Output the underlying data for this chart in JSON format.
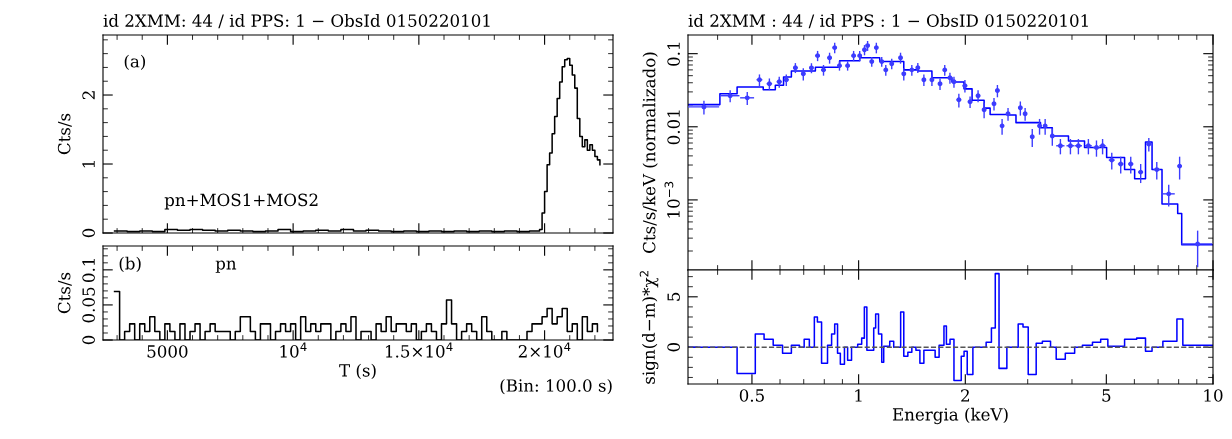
{
  "chart_data": [
    {
      "type": "step",
      "title": "id 2XMM: 44 / id PPS: 1 − ObsId 0150220101",
      "ylabel": "Cts/s",
      "annotations": [
        "(a)",
        "pn+MOS1+MOS2"
      ],
      "xlim": [
        2440,
        22720
      ],
      "xticks": [
        5000,
        10000,
        15000,
        20000
      ],
      "ylim": [
        0,
        2.87
      ],
      "yticks": [
        0,
        1,
        2
      ],
      "tick_labels": "y",
      "series": [
        {
          "color": "#000000",
          "x": [
            2900,
            3400,
            3900,
            4400,
            4900,
            5400,
            5900,
            6400,
            6900,
            7400,
            7900,
            8400,
            8900,
            9400,
            9900,
            10400,
            10900,
            11400,
            11900,
            12400,
            12900,
            13400,
            13900,
            14400,
            14900,
            15400,
            15900,
            16400,
            16900,
            17400,
            17900,
            18400,
            18900,
            19400,
            19700,
            19800,
            19900,
            20000,
            20100,
            20200,
            20300,
            20400,
            20500,
            20600,
            20700,
            20800,
            20900,
            21000,
            21100,
            21200,
            21300,
            21400,
            21500,
            21600,
            21700,
            21800,
            21900,
            22000,
            22100,
            22200
          ],
          "values": [
            0.03,
            0.02,
            0.03,
            0.02,
            0.05,
            0.04,
            0.05,
            0.04,
            0.03,
            0.04,
            0.03,
            0.02,
            0.03,
            0.05,
            0.02,
            0.03,
            0.04,
            0.03,
            0.05,
            0.03,
            0.04,
            0.03,
            0.02,
            0.03,
            0.02,
            0.03,
            0.02,
            0.03,
            0.02,
            0.03,
            0.02,
            0.03,
            0.02,
            0.03,
            0.03,
            0.05,
            0.29,
            0.6,
            0.99,
            1.16,
            1.44,
            1.69,
            1.95,
            2.19,
            2.41,
            2.51,
            2.53,
            2.43,
            2.29,
            2.1,
            1.66,
            1.4,
            1.25,
            1.35,
            1.2,
            1.28,
            1.2,
            1.11,
            1.06,
            0.99
          ]
        }
      ]
    },
    {
      "type": "step",
      "xlabel": "T (s)",
      "ylabel": "Cts/s",
      "annotations": [
        "(b)",
        "pn",
        "(Bin: 100.0 s)"
      ],
      "xlim": [
        2440,
        22720
      ],
      "xticks": [
        5000,
        {
          "value": 10000,
          "label": "10$^{4}$"
        },
        {
          "value": 15000,
          "label": "1.5×10$^{4}$"
        },
        {
          "value": 20000,
          "label": "2×10$^{4}$"
        }
      ],
      "ylim": [
        0,
        0.134
      ],
      "yticks": [
        0,
        0.05,
        0.1
      ],
      "series": [
        {
          "color": "#000000",
          "x": [
            2900,
            3100,
            3300,
            3500,
            3700,
            3900,
            4100,
            4300,
            4500,
            4700,
            4900,
            5100,
            5300,
            5500,
            5700,
            5900,
            6100,
            6300,
            6500,
            6700,
            6900,
            7100,
            7300,
            7500,
            7700,
            7900,
            8100,
            8300,
            8500,
            8700,
            8900,
            9100,
            9300,
            9500,
            9700,
            9900,
            10100,
            10300,
            10500,
            10700,
            10900,
            11100,
            11300,
            11500,
            11700,
            11900,
            12100,
            12300,
            12500,
            12700,
            12900,
            13100,
            13300,
            13500,
            13700,
            13900,
            14100,
            14300,
            14500,
            14700,
            14900,
            15100,
            15300,
            15500,
            15700,
            15900,
            16100,
            16300,
            16500,
            16700,
            16900,
            17100,
            17300,
            17500,
            17700,
            17900,
            18100,
            18300,
            18500,
            18700,
            18900,
            19100,
            19300,
            19500,
            19700,
            19900,
            20100,
            20300,
            20500,
            20700,
            20900,
            21100,
            21300,
            21500,
            21700,
            21900,
            22100
          ],
          "values": [
            0.069,
            0,
            0.012,
            0.023,
            0,
            0.023,
            0.012,
            0.033,
            0.012,
            0,
            0.023,
            0.012,
            0,
            0.023,
            0,
            0.012,
            0.023,
            0,
            0.012,
            0.023,
            0.012,
            0.012,
            0.012,
            0,
            0.012,
            0.033,
            0.033,
            0.012,
            0,
            0.023,
            0.023,
            0,
            0.012,
            0.023,
            0.012,
            0.023,
            0,
            0.033,
            0.012,
            0.023,
            0.012,
            0.023,
            0.023,
            0,
            0.012,
            0.023,
            0.012,
            0.033,
            0,
            0.012,
            0.012,
            0,
            0.023,
            0.012,
            0.033,
            0.012,
            0.023,
            0.023,
            0.012,
            0.023,
            0,
            0.012,
            0.023,
            0.012,
            0,
            0.023,
            0.057,
            0.023,
            0,
            0.012,
            0.023,
            0.012,
            0,
            0.033,
            0.012,
            0,
            0,
            0.012,
            0,
            0,
            0,
            0,
            0.012,
            0.023,
            0.023,
            0.033,
            0.045,
            0.023,
            0.033,
            0.045,
            0.012,
            0.023,
            0,
            0.033,
            0.012,
            0.023,
            0.012
          ]
        }
      ]
    },
    {
      "type": "scatter",
      "title": "id 2XMM : 44 / id PPS : 1 − ObsID 0150220101",
      "ylabel": "Cts/s/keV (normalizado)",
      "log": "xy",
      "xlim": [
        0.33,
        10
      ],
      "xticks": [
        0.5,
        1,
        2,
        5,
        10
      ],
      "ylim": [
        0.00011,
        0.18
      ],
      "yticks": [
        {
          "value": 0.001,
          "label": "10$^{−3}$"
        },
        0.01,
        0.1
      ],
      "tick_labels": "y",
      "series": [
        {
          "type": "scatter",
          "color": "#3c3cff",
          "marker": "circle",
          "x": [
            0.366,
            0.434,
            0.485,
            0.525,
            0.56,
            0.597,
            0.625,
            0.663,
            0.698,
            0.736,
            0.766,
            0.796,
            0.828,
            0.856,
            0.883,
            0.931,
            0.968,
            1.007,
            1.039,
            1.06,
            1.089,
            1.122,
            1.162,
            1.193,
            1.24,
            1.313,
            1.341,
            1.413,
            1.469,
            1.528,
            1.61,
            1.697,
            1.75,
            1.81,
            1.858,
            1.918,
            1.995,
            2.063,
            2.173,
            2.26,
            2.41,
            2.464,
            2.54,
            2.64,
            2.86,
            2.95,
            3.09,
            3.24,
            3.36,
            3.52,
            3.71,
            3.96,
            4.17,
            4.45,
            4.69,
            4.88,
            5.18,
            5.49,
            5.86,
            6.25,
            6.59,
            6.94,
            7.5,
            8.05,
            9.05
          ],
          "values": [
            0.0187,
            0.0266,
            0.0249,
            0.044,
            0.0388,
            0.0413,
            0.044,
            0.0643,
            0.053,
            0.064,
            0.094,
            0.06,
            0.088,
            0.121,
            0.0686,
            0.0686,
            0.094,
            0.094,
            0.113,
            0.129,
            0.078,
            0.121,
            0.078,
            0.06,
            0.073,
            0.088,
            0.053,
            0.06,
            0.0643,
            0.044,
            0.044,
            0.0388,
            0.06,
            0.0469,
            0.0413,
            0.0234,
            0.0365,
            0.022,
            0.0266,
            0.0171,
            0.0207,
            0.0313,
            0.0103,
            0.0151,
            0.0182,
            0.0151,
            0.0073,
            0.0103,
            0.0103,
            0.0075,
            0.0055,
            0.0055,
            0.0055,
            0.0055,
            0.0052,
            0.0055,
            0.0035,
            0.0031,
            0.0031,
            0.0024,
            0.0058,
            0.0026,
            0.00121,
            0.0029,
            0.00025
          ],
          "errors": [
            0.004,
            0.005,
            0.005,
            0.008,
            0.007,
            0.007,
            0.008,
            0.01,
            0.01,
            0.01,
            0.015,
            0.01,
            0.015,
            0.02,
            0.01,
            0.01,
            0.015,
            0.015,
            0.018,
            0.02,
            0.012,
            0.02,
            0.012,
            0.01,
            0.012,
            0.015,
            0.01,
            0.01,
            0.01,
            0.008,
            0.008,
            0.007,
            0.01,
            0.008,
            0.007,
            0.005,
            0.007,
            0.004,
            0.005,
            0.004,
            0.004,
            0.006,
            0.0025,
            0.003,
            0.004,
            0.003,
            0.002,
            0.0025,
            0.0025,
            0.002,
            0.0013,
            0.0013,
            0.0013,
            0.0013,
            0.0013,
            0.0013,
            0.0009,
            0.0008,
            0.0008,
            0.0007,
            0.0012,
            0.0007,
            0.0004,
            0.001,
            0.00013
          ],
          "xerrors": [
            0.038,
            0.027,
            0.022,
            0.01,
            0.01,
            0.01,
            0.01,
            0.01,
            0.01,
            0.01,
            0.012,
            0.012,
            0.012,
            0.012,
            0.012,
            0.012,
            0.012,
            0.012,
            0.012,
            0.012,
            0.012,
            0.012,
            0.012,
            0.012,
            0.012,
            0.012,
            0.012,
            0.012,
            0.012,
            0.012,
            0.012,
            0.012,
            0.012,
            0.012,
            0.012,
            0.03,
            0.03,
            0.03,
            0.03,
            0.03,
            0.03,
            0.03,
            0.03,
            0.03,
            0.03,
            0.03,
            0.03,
            0.03,
            0.03,
            0.03,
            0.1,
            0.1,
            0.1,
            0.1,
            0.1,
            0.1,
            0.1,
            0.1,
            0.1,
            0.1,
            0.1,
            0.15,
            0.3,
            0.1,
            0.9
          ]
        },
        {
          "type": "step",
          "color": "#0000ff",
          "x": [
            0.33,
            0.406,
            0.454,
            0.538,
            0.582,
            0.614,
            0.646,
            0.755,
            0.884,
            1.007,
            1.147,
            1.341,
            1.469,
            1.61,
            1.834,
            1.983,
            2.09,
            2.26,
            2.35,
            2.64,
            2.78,
            3.26,
            3.52,
            3.91,
            4.34,
            5.01,
            5.63,
            6.01,
            6.45,
            6.73,
            7.18,
            7.95,
            8.16,
            10.0
          ],
          "values": [
            0.0201,
            0.0283,
            0.035,
            0.032,
            0.037,
            0.048,
            0.058,
            0.065,
            0.08,
            0.088,
            0.078,
            0.06,
            0.058,
            0.047,
            0.041,
            0.033,
            0.023,
            0.018,
            0.0147,
            0.0145,
            0.0114,
            0.0097,
            0.0075,
            0.0064,
            0.0052,
            0.0038,
            0.0026,
            0.00195,
            0.0062,
            0.0026,
            0.00088,
            0.00065,
            0.000243,
            0.000243
          ]
        }
      ]
    },
    {
      "type": "step",
      "xlabel": "Energia (keV)",
      "ylabel": "sign(d−m)*χ$^{2}$",
      "log": "x",
      "xlim": [
        0.33,
        10
      ],
      "xticks": [
        0.5,
        1,
        2,
        5,
        10
      ],
      "ylim": [
        -3.65,
        7.66
      ],
      "yticks": [
        0,
        5
      ],
      "ref_lines": [
        {
          "axis": "y",
          "value": 0,
          "color": "#555555",
          "line_style": "dashed"
        }
      ],
      "series": [
        {
          "color": "#0000ff",
          "x": [
            0.33,
            0.454,
            0.511,
            0.541,
            0.574,
            0.61,
            0.646,
            0.681,
            0.702,
            0.726,
            0.75,
            0.765,
            0.786,
            0.817,
            0.839,
            0.856,
            0.872,
            0.888,
            0.912,
            0.931,
            0.955,
            0.994,
            1.02,
            1.038,
            1.055,
            1.103,
            1.117,
            1.138,
            1.162,
            1.177,
            1.224,
            1.256,
            1.314,
            1.341,
            1.377,
            1.413,
            1.451,
            1.489,
            1.528,
            1.644,
            1.687,
            1.741,
            1.769,
            1.811,
            1.858,
            1.948,
            1.984,
            2.025,
            2.101,
            2.29,
            2.37,
            2.43,
            2.49,
            2.62,
            2.82,
            2.91,
            3.01,
            3.17,
            3.3,
            3.48,
            3.61,
            3.83,
            4.07,
            4.28,
            4.57,
            4.82,
            5.05,
            5.63,
            6.09,
            6.45,
            6.73,
            7.22,
            7.91,
            8.22,
            10.0
          ],
          "values": [
            0,
            -2.6,
            1.3,
            0.8,
            0.2,
            -0.6,
            0.2,
            0,
            0.8,
            0,
            3.0,
            2.5,
            -1.6,
            0.2,
            1.3,
            2.3,
            -0.6,
            -1.7,
            0,
            -1.3,
            0,
            0.3,
            0.9,
            4.0,
            -0.3,
            1.9,
            3.3,
            1.3,
            -1.5,
            0.1,
            0.6,
            0,
            3.5,
            -0.9,
            -0.5,
            0,
            -0.3,
            -1.6,
            -0.3,
            -1.0,
            0.2,
            2.1,
            0.3,
            0.8,
            -3.3,
            -0.9,
            -0.4,
            -2.7,
            0,
            0.5,
            1.9,
            7.3,
            -2.1,
            0,
            2.3,
            2.0,
            -2.7,
            0.4,
            0.6,
            0,
            -1.2,
            -0.6,
            0,
            0.2,
            0.5,
            0.8,
            0.1,
            0.8,
            0.9,
            -0.4,
            0,
            0.6,
            2.8,
            0.2,
            0.2
          ]
        }
      ]
    }
  ]
}
